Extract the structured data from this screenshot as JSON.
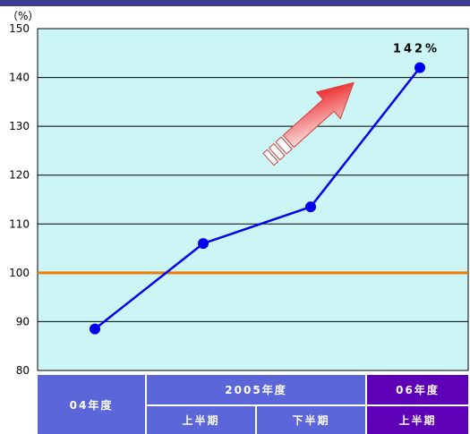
{
  "colors": {
    "top_bar": "#3a3d92",
    "plot_background": "#ccf6f6",
    "gridline": "#000000",
    "line": "#0000ee",
    "marker": "#0000ee",
    "reference_line": "#f07c00",
    "header_blue": "#5b66d9",
    "header_purple": "#5e00b8",
    "arrow_start": "#ffffff",
    "arrow_end": "#e80000"
  },
  "chart_data": {
    "type": "line",
    "title": "",
    "unit_label": "（%）",
    "ylabel": "（%）",
    "ylim": [
      80,
      150
    ],
    "yticks": [
      80,
      90,
      100,
      110,
      120,
      130,
      140,
      150
    ],
    "grid": true,
    "reference_line": {
      "y": 100
    },
    "categories": [
      "04年度",
      "2005年度 上半期",
      "2005年度 下半期",
      "06年度 上半期"
    ],
    "series": [
      {
        "values": [
          88.5,
          106,
          113.5,
          142
        ]
      }
    ],
    "annotations": [
      {
        "text": "142%",
        "category_index": 3
      }
    ],
    "arrow": {
      "direction": "up-right"
    }
  },
  "category_table": {
    "row1": [
      {
        "label": "04年度"
      },
      {
        "label": "2005年度"
      },
      {
        "label": "06年度"
      }
    ],
    "row2": [
      {
        "label": "上半期"
      },
      {
        "label": "下半期"
      },
      {
        "label": "上半期"
      }
    ]
  }
}
